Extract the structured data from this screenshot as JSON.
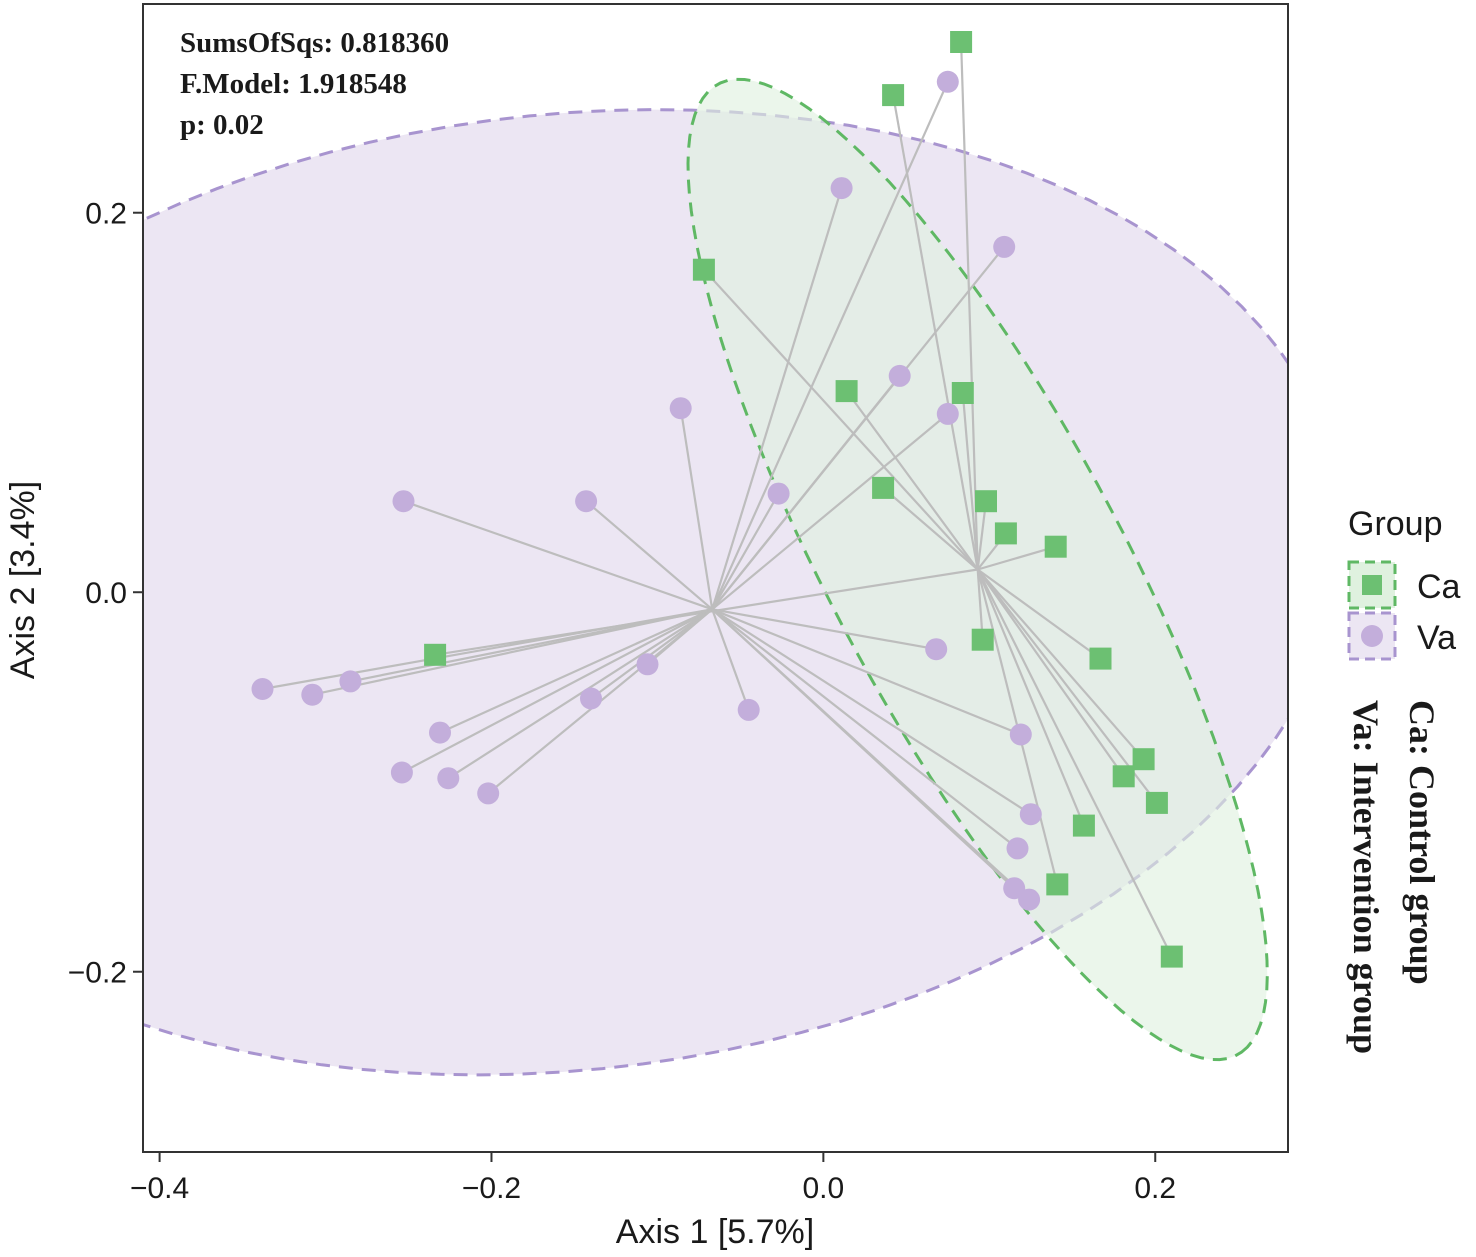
{
  "chart_data": {
    "type": "scatter",
    "subtype": "PCoA ordination with group centroid spiders and confidence ellipses",
    "xlabel": "Axis 1 [5.7%]",
    "ylabel": "Axis 2 [3.4%]",
    "xlim": [
      -0.41,
      0.28
    ],
    "ylim": [
      -0.295,
      0.31
    ],
    "xticks": [
      -0.4,
      -0.2,
      0.0,
      0.2
    ],
    "yticks": [
      -0.2,
      0.0,
      0.2
    ],
    "xtick_labels": [
      "−0.4",
      "−0.2",
      "0.0",
      "0.2"
    ],
    "ytick_labels": [
      "−0.2",
      "0.0",
      "0.2"
    ],
    "grid": false,
    "stats": {
      "sums_of_sqs": "SumsOfSqs: 0.818360",
      "f_model": "F.Model: 1.918548",
      "p_value": "p: 0.02"
    },
    "legend": {
      "title": "Group",
      "position": "right",
      "entries": [
        {
          "key": "Ca",
          "label": "Ca"
        },
        {
          "key": "Va",
          "label": "Va"
        }
      ]
    },
    "annotation": {
      "line1": "Ca: Control group",
      "line2": "Va: Intervention group"
    },
    "series": [
      {
        "name": "Ca",
        "marker": "square",
        "color": "#6cc072",
        "fill_color": "#dff1df",
        "ellipse_color": "#5fb864",
        "centroid": [
          0.093,
          0.012
        ],
        "ellipse": {
          "center": [
            0.093,
            0.012
          ],
          "semi_major": 0.3,
          "semi_minor": 0.085,
          "angle_deg": -58
        },
        "points": [
          [
            0.083,
            0.29
          ],
          [
            0.042,
            0.262
          ],
          [
            -0.072,
            0.17
          ],
          [
            0.014,
            0.106
          ],
          [
            0.084,
            0.105
          ],
          [
            0.036,
            0.055
          ],
          [
            0.098,
            0.048
          ],
          [
            0.11,
            0.031
          ],
          [
            0.14,
            0.024
          ],
          [
            0.096,
            -0.025
          ],
          [
            0.167,
            -0.035
          ],
          [
            -0.234,
            -0.033
          ],
          [
            0.193,
            -0.088
          ],
          [
            0.181,
            -0.097
          ],
          [
            0.201,
            -0.111
          ],
          [
            0.157,
            -0.123
          ],
          [
            0.141,
            -0.154
          ],
          [
            0.21,
            -0.192
          ]
        ]
      },
      {
        "name": "Va",
        "marker": "circle",
        "color": "#c3aedb",
        "fill_color": "#ece6f3",
        "ellipse_color": "#a894cf",
        "centroid": [
          -0.067,
          -0.009
        ],
        "ellipse": {
          "center": [
            -0.155,
            0.0
          ],
          "semi_major": 0.47,
          "semi_minor": 0.252,
          "angle_deg": 5
        },
        "points": [
          [
            0.075,
            0.269
          ],
          [
            0.011,
            0.213
          ],
          [
            0.109,
            0.182
          ],
          [
            0.046,
            0.114
          ],
          [
            0.075,
            0.094
          ],
          [
            -0.086,
            0.097
          ],
          [
            -0.027,
            0.052
          ],
          [
            -0.253,
            0.048
          ],
          [
            -0.143,
            0.048
          ],
          [
            0.068,
            -0.03
          ],
          [
            -0.106,
            -0.038
          ],
          [
            -0.14,
            -0.056
          ],
          [
            -0.045,
            -0.062
          ],
          [
            -0.338,
            -0.051
          ],
          [
            -0.308,
            -0.054
          ],
          [
            -0.285,
            -0.047
          ],
          [
            -0.231,
            -0.074
          ],
          [
            0.119,
            -0.075
          ],
          [
            -0.254,
            -0.095
          ],
          [
            -0.226,
            -0.098
          ],
          [
            -0.202,
            -0.106
          ],
          [
            0.125,
            -0.117
          ],
          [
            0.117,
            -0.135
          ],
          [
            0.115,
            -0.156
          ],
          [
            0.124,
            -0.162
          ]
        ]
      }
    ]
  },
  "colors": {
    "spider": "#bdbdbd",
    "axis": "#333333",
    "text": "#1a1a1a"
  }
}
